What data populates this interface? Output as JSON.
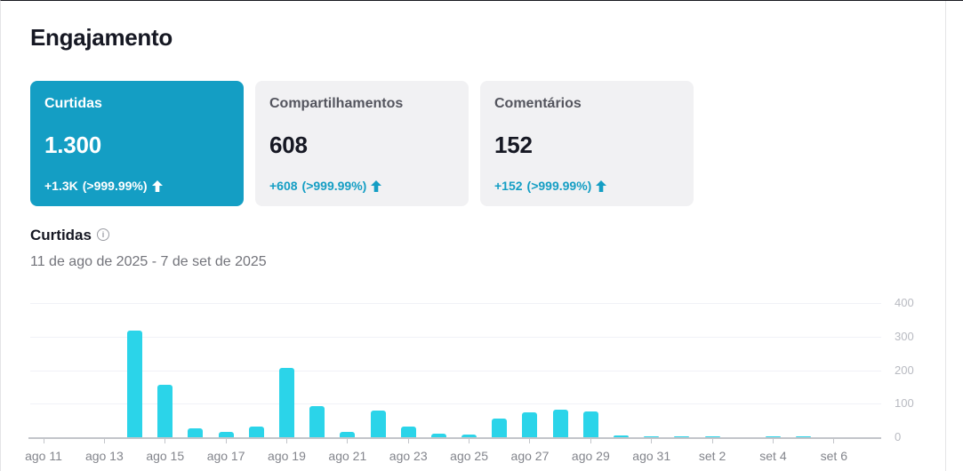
{
  "page": {
    "title": "Engajamento"
  },
  "cards": [
    {
      "label": "Curtidas",
      "value": "1.300",
      "change": "+1.3K",
      "change_pct": "(>999.99%)",
      "selected": true
    },
    {
      "label": "Compartilhamentos",
      "value": "608",
      "change": "+608",
      "change_pct": "(>999.99%)",
      "selected": false
    },
    {
      "label": "Comentários",
      "value": "152",
      "change": "+152",
      "change_pct": "(>999.99%)",
      "selected": false
    }
  ],
  "section": {
    "label": "Curtidas",
    "date_range": "11 de ago de 2025 - 7 de set de 2025"
  },
  "colors": {
    "accent_teal": "#149ec4",
    "bar_cyan": "#2bd4e9",
    "card_bg": "#f1f1f3",
    "text_dark": "#161823",
    "text_gray": "#73747b",
    "grid": "#f0f1f7",
    "axis": "#c3c5ca",
    "y_label": "#b8bac1",
    "x_label": "#83858c"
  },
  "chart_data": {
    "type": "bar",
    "title": "Curtidas",
    "x": [
      "ago 11",
      "ago 12",
      "ago 13",
      "ago 14",
      "ago 15",
      "ago 16",
      "ago 17",
      "ago 18",
      "ago 19",
      "ago 20",
      "ago 21",
      "ago 22",
      "ago 23",
      "ago 24",
      "ago 25",
      "ago 26",
      "ago 27",
      "ago 28",
      "ago 29",
      "ago 30",
      "ago 31",
      "set 1",
      "set 2",
      "set 3",
      "set 4",
      "set 5",
      "set 6",
      "set 7"
    ],
    "values": [
      0,
      0,
      0,
      318,
      155,
      26,
      15,
      33,
      207,
      93,
      15,
      80,
      31,
      10,
      7,
      55,
      75,
      83,
      77,
      5,
      3,
      2,
      2,
      0,
      2,
      3,
      0,
      0
    ],
    "x_tick_every": 2,
    "x_tick_labels": [
      "ago 11",
      "ago 13",
      "ago 15",
      "ago 17",
      "ago 19",
      "ago 21",
      "ago 23",
      "ago 25",
      "ago 27",
      "ago 29",
      "ago 31",
      "set 2",
      "set 4",
      "set 6"
    ],
    "y_ticks": [
      0,
      100,
      200,
      300,
      400
    ],
    "ylim": [
      0,
      400
    ],
    "ylabel": "",
    "xlabel": "",
    "grid": "horizontal",
    "legend": "none",
    "y_axis_side": "right"
  }
}
